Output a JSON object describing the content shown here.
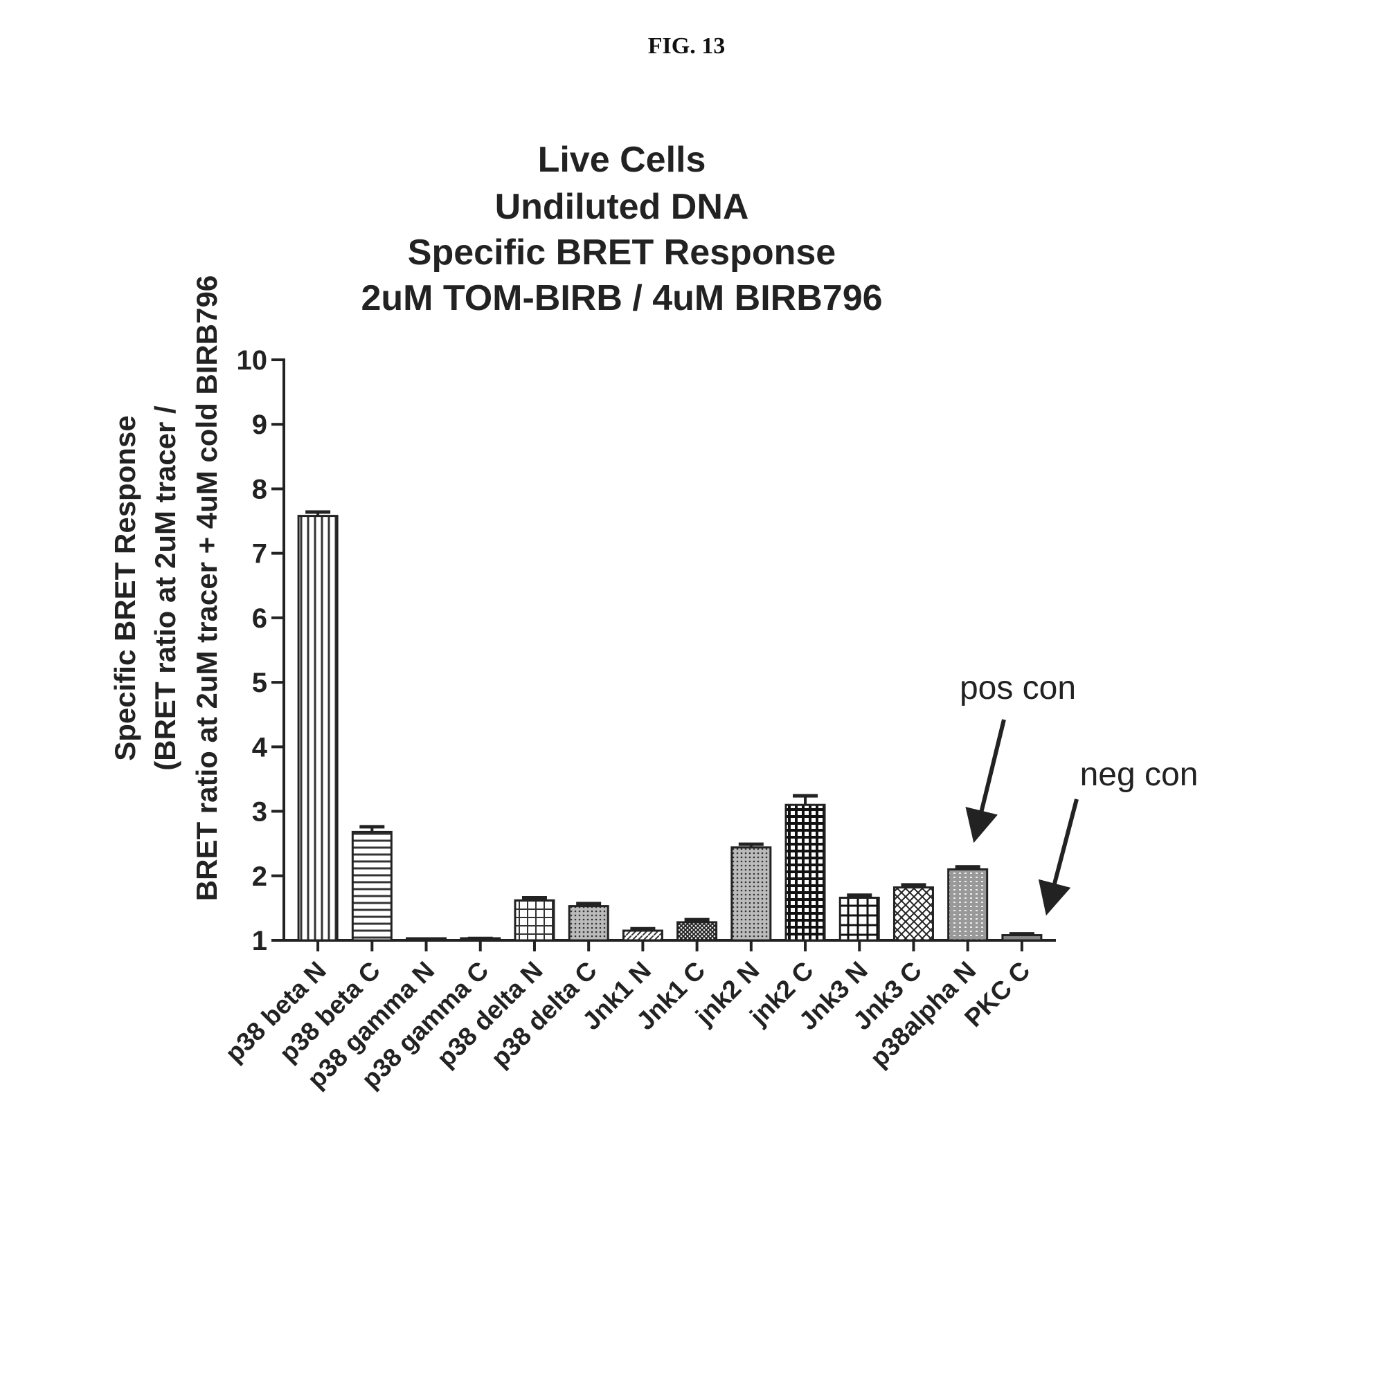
{
  "figure_label": "FIG. 13",
  "chart_data": {
    "type": "bar",
    "title": [
      "Live Cells",
      "Undiluted DNA",
      "Specific BRET Response",
      "2uM TOM-BIRB / 4uM BIRB796"
    ],
    "ylabel": [
      "Specific BRET Response",
      "(BRET ratio at 2uM tracer /",
      "BRET ratio at 2uM tracer + 4uM cold BIRB796"
    ],
    "xlabel": "",
    "ylim": [
      1,
      10
    ],
    "yticks": [
      "1",
      "2",
      "3",
      "4",
      "5",
      "6",
      "7",
      "8",
      "9",
      "10"
    ],
    "categories": [
      "p38 beta N",
      "p38 beta C",
      "p38 gamma N",
      "p38 gamma C",
      "p38 delta N",
      "p38 delta C",
      "Jnk1 N",
      "Jnk1 C",
      "jnk2 N",
      "jnk2 C",
      "Jnk3 N",
      "Jnk3 C",
      "p38alpha N",
      "PKC C"
    ],
    "values": [
      7.58,
      2.68,
      1.0,
      1.02,
      1.62,
      1.53,
      1.15,
      1.28,
      2.44,
      3.1,
      1.66,
      1.82,
      2.1,
      1.08
    ],
    "errors": [
      0.06,
      0.08,
      0.0,
      0.01,
      0.04,
      0.04,
      0.03,
      0.04,
      0.05,
      0.14,
      0.04,
      0.04,
      0.04,
      0.02
    ],
    "grid": false,
    "annotations": [
      {
        "text": "pos con",
        "target": "p38alpha N"
      },
      {
        "text": "neg con",
        "target": "PKC C"
      }
    ]
  }
}
